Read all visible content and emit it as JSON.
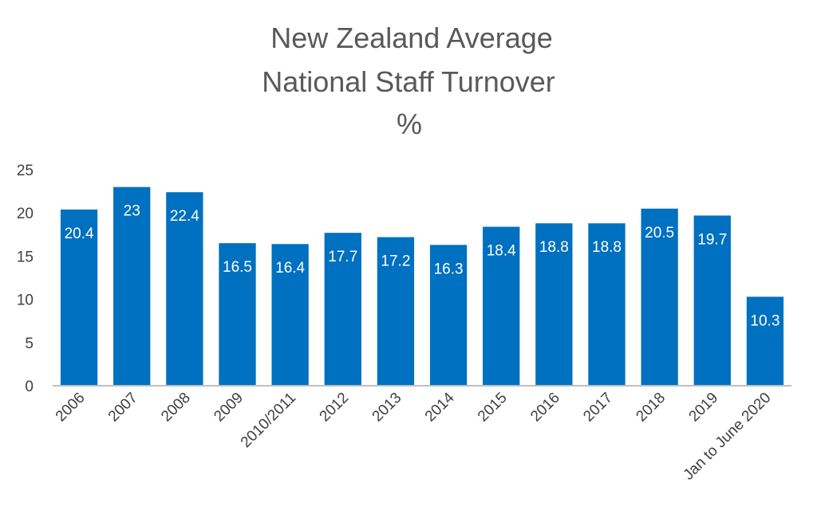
{
  "chart_data": {
    "type": "bar",
    "title_lines": [
      "New Zealand Average",
      "National Staff Turnover",
      "%"
    ],
    "categories": [
      "2006",
      "2007",
      "2008",
      "2009",
      "2010/2011",
      "2012",
      "2013",
      "2014",
      "2015",
      "2016",
      "2017",
      "2018",
      "2019",
      "Jan to June 2020"
    ],
    "values": [
      20.4,
      23,
      22.4,
      16.5,
      16.4,
      17.7,
      17.2,
      16.3,
      18.4,
      18.8,
      18.8,
      20.5,
      19.7,
      10.3
    ],
    "data_labels": [
      "20.4",
      "23",
      "22.4",
      "16.5",
      "16.4",
      "17.7",
      "17.2",
      "16.3",
      "18.4",
      "18.8",
      "18.8",
      "20.5",
      "19.7",
      "10.3"
    ],
    "y_ticks": [
      "0",
      "5",
      "10",
      "15",
      "20",
      "25"
    ],
    "ylim": [
      0,
      25
    ],
    "grid": false,
    "legend": "none",
    "bar_color": "#0070C0",
    "xlabel": "",
    "ylabel": ""
  }
}
